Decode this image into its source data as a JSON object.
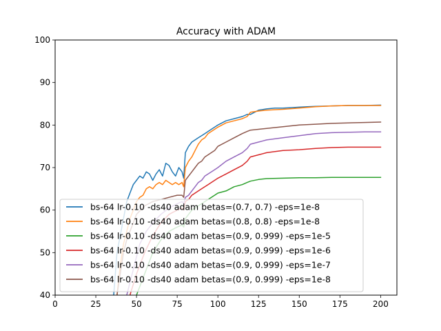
{
  "chart_data": {
    "type": "line",
    "title": "Accuracy with ADAM",
    "xlabel": "",
    "ylabel": "",
    "xlim": [
      0,
      210
    ],
    "ylim": [
      40,
      100
    ],
    "xticks": [
      0,
      25,
      50,
      75,
      100,
      125,
      150,
      175,
      200
    ],
    "yticks": [
      40,
      50,
      60,
      70,
      80,
      90,
      100
    ],
    "legend": "lower-left",
    "grid": false,
    "series": [
      {
        "name": "bs-64 lr-0.10 -ds40 adam betas=(0.7, 0.7) -eps=1e-8",
        "color": "#1f77b4",
        "x": [
          36,
          38,
          40,
          42,
          44,
          46,
          48,
          50,
          52,
          54,
          56,
          58,
          60,
          62,
          64,
          66,
          68,
          70,
          72,
          74,
          76,
          78,
          79,
          80,
          82,
          84,
          86,
          88,
          90,
          92,
          94,
          96,
          98,
          100,
          105,
          110,
          115,
          118,
          120,
          125,
          130,
          135,
          140,
          145,
          150,
          155,
          160,
          170,
          180,
          190,
          200
        ],
        "y": [
          40,
          50,
          54,
          58,
          62,
          64,
          66,
          67,
          68,
          67.5,
          69,
          68.5,
          67,
          68.5,
          69.5,
          68,
          71,
          70.5,
          69,
          68,
          70,
          69,
          67.5,
          73.5,
          75,
          76,
          76.5,
          77,
          77.5,
          78,
          78.5,
          79,
          79.5,
          80,
          81,
          81.5,
          82,
          82.5,
          82.5,
          83.5,
          83.8,
          84,
          84,
          84.1,
          84.2,
          84.3,
          84.4,
          84.5,
          84.6,
          84.6,
          84.7
        ]
      },
      {
        "name": "bs-64 lr-0.10 -ds40 adam betas=(0.8, 0.8) -eps=1e-8",
        "color": "#ff7f0e",
        "x": [
          38,
          40,
          42,
          44,
          46,
          48,
          50,
          52,
          54,
          56,
          58,
          60,
          62,
          64,
          66,
          68,
          70,
          72,
          74,
          76,
          78,
          79,
          80,
          82,
          84,
          86,
          88,
          90,
          92,
          94,
          96,
          98,
          100,
          105,
          110,
          115,
          118,
          120,
          125,
          130,
          135,
          140,
          150,
          160,
          170,
          180,
          190,
          200
        ],
        "y": [
          40,
          47,
          52,
          55,
          58,
          60,
          62,
          63,
          63.5,
          65,
          65.5,
          65,
          66,
          66.5,
          66,
          67,
          66.5,
          66,
          66.5,
          66,
          66.5,
          65.5,
          70,
          71.5,
          72.5,
          74,
          75.5,
          76.5,
          77,
          78,
          78.5,
          79,
          79.5,
          80.5,
          81,
          81.5,
          82,
          83,
          83.3,
          83.5,
          83.6,
          83.7,
          84,
          84.3,
          84.5,
          84.6,
          84.6,
          84.6
        ]
      },
      {
        "name": "bs-64 lr-0.10 -ds40 adam betas=(0.9, 0.999) -eps=1e-5",
        "color": "#2ca02c",
        "x": [
          50,
          55,
          60,
          65,
          70,
          75,
          78,
          79,
          80,
          82,
          84,
          86,
          88,
          90,
          92,
          94,
          96,
          98,
          100,
          105,
          110,
          115,
          118,
          120,
          125,
          130,
          140,
          150,
          160,
          170,
          180,
          190,
          200
        ],
        "y": [
          40,
          45,
          50,
          53,
          55,
          56,
          56.5,
          56,
          58,
          59,
          60,
          60.5,
          61,
          61.5,
          62,
          62.5,
          63,
          63.5,
          64,
          64.5,
          65.5,
          66,
          66.5,
          66.8,
          67.2,
          67.4,
          67.5,
          67.6,
          67.6,
          67.7,
          67.7,
          67.7,
          67.7
        ]
      },
      {
        "name": "bs-64 lr-0.10 -ds40 adam betas=(0.9, 0.999) -eps=1e-6",
        "color": "#d62728",
        "x": [
          46,
          50,
          55,
          60,
          65,
          70,
          75,
          78,
          79,
          80,
          82,
          84,
          86,
          88,
          90,
          92,
          94,
          96,
          98,
          100,
          105,
          110,
          115,
          118,
          120,
          125,
          130,
          140,
          150,
          160,
          170,
          180,
          190,
          200
        ],
        "y": [
          40,
          45,
          50,
          54,
          57,
          59,
          60,
          60.5,
          60,
          62,
          62.5,
          63.5,
          64,
          64.5,
          65,
          65.5,
          66,
          66.5,
          67,
          67.5,
          68.5,
          69.5,
          70.5,
          71.5,
          72.5,
          73,
          73.5,
          74,
          74.2,
          74.5,
          74.7,
          74.8,
          74.8,
          74.8
        ]
      },
      {
        "name": "bs-64 lr-0.10 -ds40 adam betas=(0.9, 0.999) -eps=1e-7",
        "color": "#9467bd",
        "x": [
          44,
          48,
          52,
          56,
          60,
          65,
          70,
          75,
          78,
          79,
          80,
          82,
          84,
          86,
          88,
          90,
          92,
          94,
          96,
          98,
          100,
          105,
          110,
          115,
          118,
          120,
          125,
          130,
          140,
          150,
          160,
          170,
          180,
          190,
          200
        ],
        "y": [
          40,
          46,
          52,
          55,
          57,
          59,
          60.5,
          61.5,
          62,
          61.5,
          63,
          63.5,
          64.5,
          65.5,
          66.5,
          67,
          68,
          68.5,
          69,
          69.5,
          70,
          71.5,
          72.5,
          73.5,
          74.5,
          75.5,
          76,
          76.5,
          77,
          77.5,
          78,
          78.2,
          78.3,
          78.4,
          78.4
        ]
      },
      {
        "name": "bs-64 lr-0.10 -ds40 adam betas=(0.9, 0.999) -eps=1e-8",
        "color": "#8c564b",
        "x": [
          38,
          40,
          42,
          44,
          46,
          48,
          50,
          55,
          60,
          65,
          70,
          75,
          78,
          79,
          80,
          82,
          84,
          86,
          88,
          90,
          92,
          94,
          96,
          98,
          100,
          105,
          110,
          115,
          118,
          120,
          125,
          130,
          140,
          150,
          160,
          170,
          180,
          190,
          200
        ],
        "y": [
          40,
          45,
          50,
          53,
          55,
          57,
          59,
          61,
          62,
          62.5,
          63,
          63.5,
          63.5,
          63,
          67,
          68,
          69,
          70,
          71,
          71.5,
          72.5,
          73,
          73.5,
          74,
          75,
          76,
          77,
          78,
          78.5,
          78.8,
          79,
          79.2,
          79.6,
          80,
          80.2,
          80.4,
          80.5,
          80.6,
          80.7
        ]
      }
    ]
  }
}
